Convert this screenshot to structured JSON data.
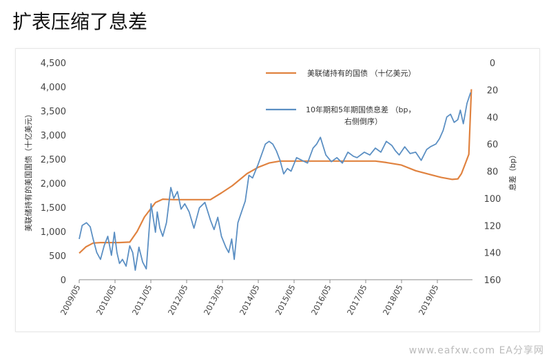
{
  "title": "扩表压缩了息差",
  "watermark": "www.eafxw.com EA分享网",
  "colors": {
    "fed_line": "#e0823f",
    "spread_line": "#5b8fc3"
  },
  "chart_data": {
    "type": "line",
    "title": "扩表压缩了息差",
    "left_axis_label": "美联储持有的美国国债（十亿美元）",
    "right_axis_label": "息差（bp）",
    "left_ylim": [
      0,
      4500
    ],
    "right_ylim_reversed": [
      0,
      160
    ],
    "left_ticks": [
      "4,500",
      "4,000",
      "3,500",
      "3,000",
      "2,500",
      "2,000",
      "1,500",
      "1,000",
      "500",
      "0"
    ],
    "right_ticks": [
      "0",
      "20",
      "40",
      "60",
      "80",
      "100",
      "120",
      "140",
      "160"
    ],
    "x_ticks": [
      "2009/05",
      "2010/05",
      "2011/05",
      "2012/05",
      "2013/05",
      "2014/05",
      "2015/05",
      "2016/05",
      "2017/05",
      "2018/05",
      "2019/05"
    ],
    "legend": [
      {
        "name": "美联储持有的国债 （十亿美元）",
        "color": "#e0823f"
      },
      {
        "name_line1": "10年期和5年期国债息差 （bp，",
        "name_line2": "右侧倒序）",
        "color": "#5b8fc3"
      }
    ],
    "series": [
      {
        "name": "美联储持有的国债 （十亿美元）",
        "axis": "left",
        "x": [
          2009.42,
          2009.6,
          2009.8,
          2010.0,
          2010.2,
          2010.5,
          2010.8,
          2011.0,
          2011.2,
          2011.5,
          2011.7,
          2012.0,
          2012.5,
          2013.0,
          2013.3,
          2013.6,
          2014.0,
          2014.3,
          2014.6,
          2014.9,
          2015.2,
          2015.6,
          2016.0,
          2016.6,
          2017.0,
          2017.5,
          2017.8,
          2018.2,
          2018.6,
          2019.0,
          2019.3,
          2019.6,
          2019.75,
          2019.85,
          2019.95,
          2020.05,
          2020.12
        ],
        "y": [
          550,
          680,
          760,
          770,
          770,
          770,
          780,
          1000,
          1300,
          1600,
          1670,
          1660,
          1660,
          1660,
          1800,
          1950,
          2200,
          2330,
          2420,
          2460,
          2460,
          2460,
          2460,
          2460,
          2460,
          2460,
          2430,
          2380,
          2260,
          2180,
          2120,
          2080,
          2090,
          2200,
          2400,
          2600,
          3950
        ]
      },
      {
        "name": "10年期和5年期国债息差 （bp， 右侧倒序）",
        "axis": "right",
        "x": [
          2009.42,
          2009.5,
          2009.62,
          2009.72,
          2009.8,
          2009.9,
          2010.0,
          2010.1,
          2010.2,
          2010.3,
          2010.38,
          2010.45,
          2010.52,
          2010.6,
          2010.7,
          2010.8,
          2010.88,
          2010.95,
          2011.05,
          2011.15,
          2011.25,
          2011.38,
          2011.5,
          2011.55,
          2011.62,
          2011.7,
          2011.8,
          2011.92,
          2012.0,
          2012.1,
          2012.2,
          2012.3,
          2012.42,
          2012.55,
          2012.7,
          2012.85,
          2013.0,
          2013.1,
          2013.2,
          2013.3,
          2013.42,
          2013.5,
          2013.58,
          2013.65,
          2013.75,
          2013.85,
          2013.95,
          2014.05,
          2014.15,
          2014.3,
          2014.5,
          2014.6,
          2014.7,
          2014.8,
          2014.9,
          2015.0,
          2015.1,
          2015.2,
          2015.35,
          2015.5,
          2015.65,
          2015.8,
          2015.9,
          2016.0,
          2016.15,
          2016.3,
          2016.45,
          2016.6,
          2016.75,
          2016.9,
          2017.0,
          2017.2,
          2017.35,
          2017.5,
          2017.65,
          2017.8,
          2017.95,
          2018.05,
          2018.15,
          2018.3,
          2018.45,
          2018.6,
          2018.75,
          2018.9,
          2019.0,
          2019.15,
          2019.25,
          2019.35,
          2019.45,
          2019.55,
          2019.65,
          2019.75,
          2019.82,
          2019.9,
          2020.0,
          2020.1
        ],
        "y": [
          130,
          120,
          118,
          121,
          130,
          140,
          145,
          135,
          128,
          142,
          125,
          140,
          148,
          145,
          150,
          135,
          140,
          153,
          136,
          147,
          152,
          104,
          125,
          110,
          122,
          128,
          118,
          92,
          100,
          95,
          108,
          104,
          110,
          122,
          107,
          103,
          116,
          123,
          114,
          128,
          136,
          140,
          130,
          145,
          118,
          110,
          102,
          83,
          85,
          75,
          60,
          58,
          60,
          65,
          72,
          82,
          78,
          80,
          70,
          72,
          74,
          63,
          60,
          55,
          68,
          73,
          70,
          74,
          66,
          69,
          70,
          66,
          68,
          63,
          66,
          58,
          61,
          65,
          68,
          62,
          67,
          66,
          72,
          64,
          62,
          60,
          56,
          50,
          40,
          38,
          44,
          42,
          35,
          45,
          30,
          22
        ]
      }
    ]
  }
}
